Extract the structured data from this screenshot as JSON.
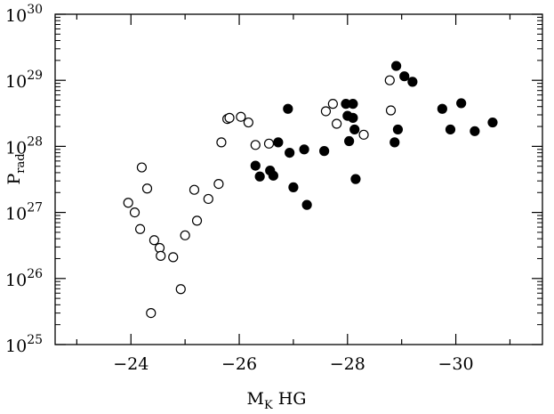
{
  "chart_data": {
    "type": "scatter",
    "xlabel": "M",
    "xlabel_sub": "K",
    "xlabel_suffix": " HG",
    "ylabel": "P",
    "ylabel_sub": "rad",
    "xlim": [
      -22.6,
      -31.6
    ],
    "ylim_log10": [
      25,
      30
    ],
    "yscale": "log",
    "grid": false,
    "x_ticks": [
      {
        "value": -24,
        "label": "−24"
      },
      {
        "value": -26,
        "label": "−26"
      },
      {
        "value": -28,
        "label": "−28"
      },
      {
        "value": -30,
        "label": "−30"
      }
    ],
    "y_ticks": [
      {
        "exp": 25,
        "base": "10",
        "sup": "25"
      },
      {
        "exp": 26,
        "base": "10",
        "sup": "26"
      },
      {
        "exp": 27,
        "base": "10",
        "sup": "27"
      },
      {
        "exp": 28,
        "base": "10",
        "sup": "28"
      },
      {
        "exp": 29,
        "base": "10",
        "sup": "29"
      },
      {
        "exp": 30,
        "base": "10",
        "sup": "30"
      }
    ],
    "series": [
      {
        "marker": "open-circle",
        "points": [
          {
            "x": -23.95,
            "y": 1.4e+27
          },
          {
            "x": -24.07,
            "y": 1e+27
          },
          {
            "x": -24.17,
            "y": 5.6e+26
          },
          {
            "x": -24.2,
            "y": 4.8e+27
          },
          {
            "x": -24.3,
            "y": 2.3e+27
          },
          {
            "x": -24.37,
            "y": 3e+25
          },
          {
            "x": -24.43,
            "y": 3.8e+26
          },
          {
            "x": -24.53,
            "y": 2.9e+26
          },
          {
            "x": -24.55,
            "y": 2.2e+26
          },
          {
            "x": -24.78,
            "y": 2.1e+26
          },
          {
            "x": -24.92,
            "y": 6.9e+25
          },
          {
            "x": -25.0,
            "y": 4.5e+26
          },
          {
            "x": -25.17,
            "y": 2.2e+27
          },
          {
            "x": -25.22,
            "y": 7.5e+26
          },
          {
            "x": -25.43,
            "y": 1.6e+27
          },
          {
            "x": -25.62,
            "y": 2.7e+27
          },
          {
            "x": -25.67,
            "y": 1.15e+28
          },
          {
            "x": -25.78,
            "y": 2.6e+28
          },
          {
            "x": -25.82,
            "y": 2.7e+28
          },
          {
            "x": -26.03,
            "y": 2.8e+28
          },
          {
            "x": -26.17,
            "y": 2.3e+28
          },
          {
            "x": -26.3,
            "y": 1.05e+28
          },
          {
            "x": -26.55,
            "y": 1.1e+28
          },
          {
            "x": -27.6,
            "y": 3.4e+28
          },
          {
            "x": -27.73,
            "y": 4.4e+28
          },
          {
            "x": -27.8,
            "y": 2.2e+28
          },
          {
            "x": -28.3,
            "y": 1.5e+28
          },
          {
            "x": -28.78,
            "y": 1e+29
          },
          {
            "x": -28.8,
            "y": 3.5e+28
          }
        ]
      },
      {
        "marker": "filled-circle",
        "points": [
          {
            "x": -26.3,
            "y": 5.1e+27
          },
          {
            "x": -26.38,
            "y": 3.5e+27
          },
          {
            "x": -26.57,
            "y": 4.3e+27
          },
          {
            "x": -26.63,
            "y": 3.6e+27
          },
          {
            "x": -26.72,
            "y": 1.15e+28
          },
          {
            "x": -26.9,
            "y": 3.7e+28
          },
          {
            "x": -26.93,
            "y": 8e+27
          },
          {
            "x": -27.0,
            "y": 2.4e+27
          },
          {
            "x": -27.2,
            "y": 9e+27
          },
          {
            "x": -27.25,
            "y": 1.3e+27
          },
          {
            "x": -27.57,
            "y": 8.5e+27
          },
          {
            "x": -27.97,
            "y": 4.4e+28
          },
          {
            "x": -28.0,
            "y": 2.9e+28
          },
          {
            "x": -28.03,
            "y": 1.2e+28
          },
          {
            "x": -28.1,
            "y": 4.4e+28
          },
          {
            "x": -28.1,
            "y": 2.7e+28
          },
          {
            "x": -28.13,
            "y": 1.8e+28
          },
          {
            "x": -28.15,
            "y": 3.2e+27
          },
          {
            "x": -28.87,
            "y": 1.15e+28
          },
          {
            "x": -28.9,
            "y": 1.65e+29
          },
          {
            "x": -28.93,
            "y": 1.8e+28
          },
          {
            "x": -29.05,
            "y": 1.15e+29
          },
          {
            "x": -29.2,
            "y": 9.5e+28
          },
          {
            "x": -29.75,
            "y": 3.7e+28
          },
          {
            "x": -29.9,
            "y": 1.8e+28
          },
          {
            "x": -30.1,
            "y": 4.5e+28
          },
          {
            "x": -30.35,
            "y": 1.7e+28
          },
          {
            "x": -30.68,
            "y": 2.3e+28
          }
        ]
      }
    ]
  }
}
